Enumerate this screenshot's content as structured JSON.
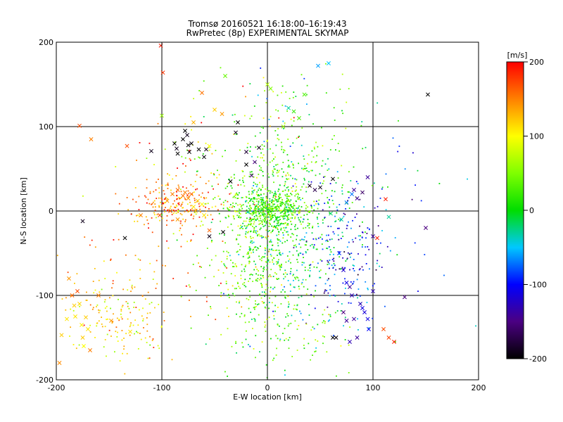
{
  "chart_data": {
    "type": "scatter",
    "title": "Tromsø 20160521 16:18:00–16:19:43",
    "subtitle": "RwPretec (8p) EXPERIMENTAL SKYMAP",
    "xlabel": "E-W location [km]",
    "ylabel": "N-S location [km]",
    "xlim": [
      -200,
      200
    ],
    "ylim": [
      -200,
      200
    ],
    "xticks": [
      "-200",
      "-100",
      "0",
      "100",
      "200"
    ],
    "yticks": [
      "-200",
      "-100",
      "0",
      "100",
      "200"
    ],
    "grid": true,
    "grid_values": [
      -100,
      0,
      100
    ],
    "colorbar": {
      "label": "[m/s]",
      "range": [
        -200,
        200
      ],
      "ticks": [
        "-200",
        "-100",
        "0",
        "100",
        "200"
      ]
    },
    "markers": {
      "small": "dot",
      "large": "x"
    },
    "series": [
      {
        "marker": "x",
        "points": [
          [
            -197,
            -180,
            145
          ],
          [
            -195,
            -147,
            120
          ],
          [
            -190,
            -128,
            110
          ],
          [
            -188,
            -80,
            140
          ],
          [
            -185,
            -100,
            160
          ],
          [
            -183,
            -112,
            120
          ],
          [
            -182,
            -125,
            110
          ],
          [
            -180,
            -95,
            170
          ],
          [
            -178,
            -110,
            115
          ],
          [
            -176,
            -135,
            105
          ],
          [
            -175,
            -150,
            120
          ],
          [
            -174,
            -160,
            100
          ],
          [
            -172,
            -126,
            120
          ],
          [
            -170,
            -140,
            110
          ],
          [
            -168,
            -165,
            150
          ],
          [
            -178,
            101,
            170
          ],
          [
            -167,
            85,
            150
          ],
          [
            -133,
            77,
            170
          ],
          [
            -110,
            71,
            -190
          ],
          [
            -99,
            164,
            180
          ],
          [
            -101,
            196,
            190
          ],
          [
            -100,
            113,
            60
          ],
          [
            -88,
            80,
            -200
          ],
          [
            -86,
            74,
            -190
          ],
          [
            -85,
            68,
            -200
          ],
          [
            -80,
            85,
            -200
          ],
          [
            -78,
            95,
            -200
          ],
          [
            -76,
            90,
            -190
          ],
          [
            -75,
            78,
            -200
          ],
          [
            -74,
            70,
            -200
          ],
          [
            -72,
            80,
            -195
          ],
          [
            -65,
            73,
            -200
          ],
          [
            -60,
            64,
            -200
          ],
          [
            -58,
            73,
            -190
          ],
          [
            -55,
            77,
            100
          ],
          [
            -70,
            105,
            130
          ],
          [
            -62,
            140,
            155
          ],
          [
            -50,
            120,
            120
          ],
          [
            -43,
            115,
            140
          ],
          [
            -40,
            160,
            40
          ],
          [
            -30,
            93,
            -190
          ],
          [
            -28,
            105,
            -200
          ],
          [
            -20,
            55,
            -200
          ],
          [
            -35,
            35,
            -200
          ],
          [
            -42,
            -25,
            -200
          ],
          [
            -55,
            -30,
            -190
          ],
          [
            -135,
            -32,
            -200
          ],
          [
            -175,
            -12,
            -190
          ],
          [
            -120,
            -5,
            150
          ],
          [
            -95,
            12,
            140
          ],
          [
            -90,
            20,
            150
          ],
          [
            -85,
            25,
            160
          ],
          [
            -80,
            18,
            155
          ],
          [
            -78,
            22,
            150
          ],
          [
            -75,
            15,
            140
          ],
          [
            -72,
            20,
            160
          ],
          [
            -70,
            5,
            110
          ],
          [
            -68,
            0,
            130
          ],
          [
            -66,
            12,
            120
          ],
          [
            -62,
            8,
            100
          ],
          [
            -60,
            -5,
            110
          ],
          [
            -102,
            -5,
            170
          ],
          [
            -92,
            0,
            160
          ],
          [
            -85,
            -10,
            140
          ],
          [
            -8,
            75,
            -190
          ],
          [
            -20,
            70,
            -180
          ],
          [
            -15,
            42,
            -160
          ],
          [
            -12,
            58,
            -150
          ],
          [
            0,
            150,
            70
          ],
          [
            3,
            145,
            50
          ],
          [
            15,
            100,
            60
          ],
          [
            20,
            122,
            -30
          ],
          [
            25,
            118,
            20
          ],
          [
            30,
            110,
            30
          ],
          [
            35,
            138,
            30
          ],
          [
            48,
            172,
            -60
          ],
          [
            58,
            175,
            -50
          ],
          [
            60,
            -3,
            -20
          ],
          [
            68,
            -50,
            -90
          ],
          [
            72,
            -70,
            -120
          ],
          [
            75,
            -85,
            -110
          ],
          [
            78,
            -90,
            -140
          ],
          [
            80,
            -100,
            -130
          ],
          [
            62,
            -150,
            -200
          ],
          [
            72,
            -120,
            -150
          ],
          [
            75,
            -130,
            -140
          ],
          [
            78,
            -155,
            -130
          ],
          [
            82,
            -128,
            -140
          ],
          [
            85,
            -150,
            -140
          ],
          [
            88,
            -110,
            -130
          ],
          [
            90,
            -115,
            -110
          ],
          [
            92,
            -120,
            -115
          ],
          [
            95,
            -128,
            -110
          ],
          [
            96,
            -140,
            -100
          ],
          [
            100,
            -95,
            -130
          ],
          [
            65,
            -150,
            -195
          ],
          [
            70,
            -10,
            -30
          ],
          [
            75,
            10,
            -70
          ],
          [
            80,
            20,
            -70
          ],
          [
            82,
            25,
            -140
          ],
          [
            85,
            15,
            -140
          ],
          [
            90,
            22,
            -160
          ],
          [
            95,
            40,
            -140
          ],
          [
            100,
            -30,
            -140
          ],
          [
            104,
            -32,
            190
          ],
          [
            110,
            -140,
            170
          ],
          [
            115,
            -150,
            175
          ],
          [
            112,
            14,
            190
          ],
          [
            115,
            -7,
            -30
          ],
          [
            120,
            -155,
            190
          ],
          [
            150,
            -20,
            -150
          ],
          [
            152,
            138,
            -200
          ],
          [
            130,
            -102,
            -150
          ],
          [
            62,
            38,
            -200
          ],
          [
            50,
            28,
            -190
          ],
          [
            45,
            25,
            -170
          ],
          [
            40,
            30,
            -180
          ],
          [
            -160,
            -100,
            150
          ],
          [
            -148,
            -130,
            140
          ],
          [
            -130,
            -143,
            110
          ],
          [
            -55,
            -23,
            160
          ]
        ]
      },
      {
        "marker": "dot",
        "clusters": [
          {
            "cx": 0,
            "cy": 2,
            "sx": 18,
            "sy": 12,
            "n": 520,
            "v": 25,
            "dv": 30
          },
          {
            "cx": -10,
            "cy": -55,
            "sx": 22,
            "sy": 48,
            "n": 420,
            "v": 40,
            "dv": 35
          },
          {
            "cx": 25,
            "cy": -45,
            "sx": 25,
            "sy": 45,
            "n": 260,
            "v": -10,
            "dv": 25
          },
          {
            "cx": 15,
            "cy": 45,
            "sx": 30,
            "sy": 35,
            "n": 260,
            "v": 30,
            "dv": 35
          },
          {
            "cx": 70,
            "cy": -55,
            "sx": 22,
            "sy": 40,
            "n": 180,
            "v": -95,
            "dv": 40
          },
          {
            "cx": -85,
            "cy": 8,
            "sx": 20,
            "sy": 14,
            "n": 200,
            "v": 150,
            "dv": 30
          },
          {
            "cx": -145,
            "cy": -125,
            "sx": 28,
            "sy": 25,
            "n": 150,
            "v": 110,
            "dv": 30
          },
          {
            "cx": -60,
            "cy": 60,
            "sx": 30,
            "sy": 45,
            "n": 80,
            "v": 100,
            "dv": 60
          },
          {
            "cx": -110,
            "cy": -70,
            "sx": 40,
            "sy": 45,
            "n": 80,
            "v": 150,
            "dv": 40
          },
          {
            "cx": 95,
            "cy": 15,
            "sx": 40,
            "sy": 50,
            "n": 60,
            "v": -60,
            "dv": 60
          },
          {
            "cx": 30,
            "cy": -150,
            "sx": 35,
            "sy": 25,
            "n": 90,
            "v": 30,
            "dv": 40
          },
          {
            "cx": 20,
            "cy": 130,
            "sx": 30,
            "sy": 25,
            "n": 40,
            "v": 20,
            "dv": 50
          }
        ]
      }
    ]
  }
}
